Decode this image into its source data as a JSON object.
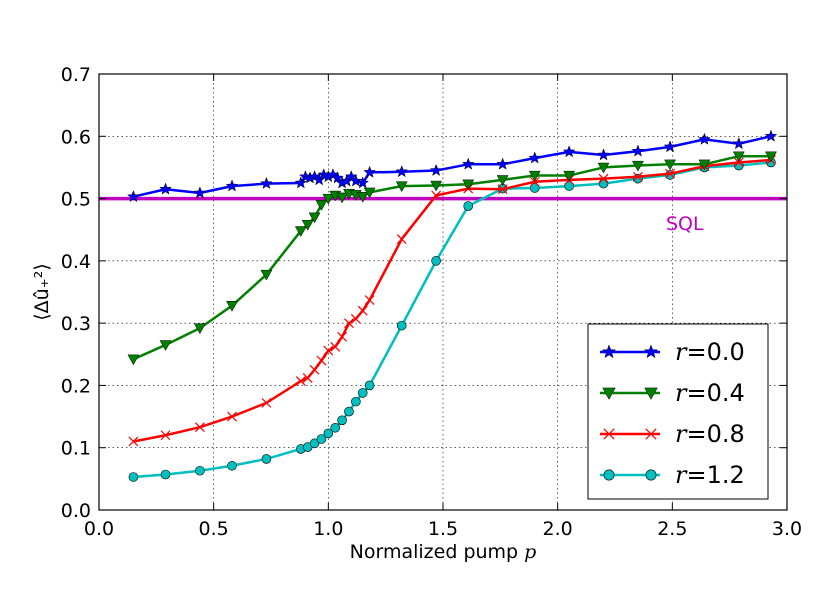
{
  "chart_data": {
    "type": "line",
    "title": "",
    "xlabel": "Normalized pump",
    "xlabel_var": "p",
    "ylabel": "⟨Δû₊²⟩",
    "xlim": [
      0.0,
      3.0
    ],
    "ylim": [
      0.0,
      0.7
    ],
    "xticks": [
      "0.0",
      "0.5",
      "1.0",
      "1.5",
      "2.0",
      "2.5",
      "3.0"
    ],
    "yticks": [
      "0.0",
      "0.1",
      "0.2",
      "0.3",
      "0.4",
      "0.5",
      "0.6",
      "0.7"
    ],
    "grid": true,
    "legend_position": "lower-right",
    "reference_line": {
      "label": "SQL",
      "y": 0.5,
      "color": "#bf00bf"
    },
    "series": [
      {
        "name": "r=0.0",
        "var": "r",
        "value_label": "=0.0",
        "color": "#0000ff",
        "marker": "star",
        "x": [
          0.15,
          0.29,
          0.44,
          0.58,
          0.73,
          0.88,
          0.9,
          0.92,
          0.94,
          0.96,
          0.98,
          1.0,
          1.02,
          1.04,
          1.06,
          1.08,
          1.1,
          1.12,
          1.15,
          1.18,
          1.32,
          1.47,
          1.61,
          1.76,
          1.9,
          2.05,
          2.2,
          2.35,
          2.49,
          2.64,
          2.79,
          2.93
        ],
        "y": [
          0.503,
          0.515,
          0.509,
          0.52,
          0.524,
          0.525,
          0.535,
          0.533,
          0.535,
          0.53,
          0.538,
          0.535,
          0.538,
          0.533,
          0.525,
          0.528,
          0.535,
          0.528,
          0.525,
          0.542,
          0.543,
          0.545,
          0.555,
          0.555,
          0.565,
          0.575,
          0.57,
          0.576,
          0.583,
          0.595,
          0.588,
          0.6
        ]
      },
      {
        "name": "r=0.4",
        "var": "r",
        "value_label": "=0.4",
        "color": "#008000",
        "marker": "triangle-down",
        "x": [
          0.15,
          0.29,
          0.44,
          0.58,
          0.73,
          0.88,
          0.91,
          0.94,
          0.97,
          1.0,
          1.03,
          1.06,
          1.09,
          1.12,
          1.15,
          1.18,
          1.32,
          1.47,
          1.61,
          1.76,
          1.9,
          2.05,
          2.2,
          2.35,
          2.49,
          2.64,
          2.79,
          2.93
        ],
        "y": [
          0.242,
          0.265,
          0.292,
          0.328,
          0.378,
          0.448,
          0.458,
          0.47,
          0.49,
          0.5,
          0.505,
          0.502,
          0.508,
          0.506,
          0.503,
          0.51,
          0.52,
          0.521,
          0.523,
          0.53,
          0.537,
          0.537,
          0.55,
          0.553,
          0.555,
          0.555,
          0.568,
          0.568
        ]
      },
      {
        "name": "r=0.8",
        "var": "r",
        "value_label": "=0.8",
        "color": "#ff0000",
        "marker": "x",
        "x": [
          0.15,
          0.29,
          0.44,
          0.58,
          0.73,
          0.88,
          0.91,
          0.94,
          0.97,
          1.0,
          1.03,
          1.06,
          1.09,
          1.12,
          1.15,
          1.18,
          1.32,
          1.47,
          1.61,
          1.76,
          1.9,
          2.05,
          2.2,
          2.35,
          2.49,
          2.64,
          2.79,
          2.93
        ],
        "y": [
          0.11,
          0.12,
          0.133,
          0.15,
          0.172,
          0.207,
          0.212,
          0.225,
          0.24,
          0.256,
          0.262,
          0.278,
          0.3,
          0.307,
          0.32,
          0.337,
          0.435,
          0.505,
          0.516,
          0.515,
          0.527,
          0.53,
          0.532,
          0.535,
          0.54,
          0.552,
          0.558,
          0.562
        ]
      },
      {
        "name": "r=1.2",
        "var": "r",
        "value_label": "=1.2",
        "color": "#00bfbf",
        "marker": "circle",
        "x": [
          0.15,
          0.29,
          0.44,
          0.58,
          0.73,
          0.88,
          0.91,
          0.94,
          0.97,
          1.0,
          1.03,
          1.06,
          1.09,
          1.12,
          1.15,
          1.18,
          1.32,
          1.47,
          1.61,
          1.76,
          1.9,
          2.05,
          2.2,
          2.35,
          2.49,
          2.64,
          2.79,
          2.93
        ],
        "y": [
          0.053,
          0.057,
          0.063,
          0.071,
          0.082,
          0.098,
          0.101,
          0.107,
          0.114,
          0.123,
          0.132,
          0.144,
          0.158,
          0.174,
          0.188,
          0.2,
          0.296,
          0.4,
          0.488,
          0.516,
          0.517,
          0.52,
          0.524,
          0.532,
          0.538,
          0.55,
          0.553,
          0.558
        ]
      }
    ]
  }
}
